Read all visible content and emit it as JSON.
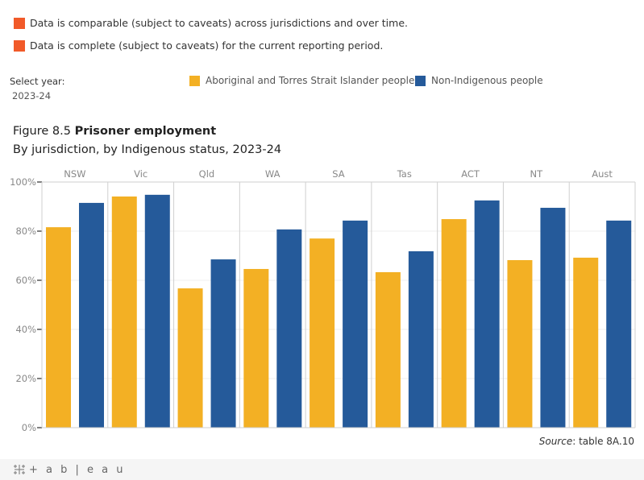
{
  "caveats": [
    {
      "text": "Data is comparable (subject to caveats) across jurisdictions and over time.",
      "color": "#f15a29"
    },
    {
      "text": "Data is complete (subject to caveats) for the current reporting period.",
      "color": "#f15a29"
    }
  ],
  "filter": {
    "label": "Select year:",
    "value": "2023-24"
  },
  "legend": [
    {
      "label": "Aboriginal and Torres Strait Islander people",
      "color": "#f3b024"
    },
    {
      "label": "Non-Indigenous people",
      "color": "#255a9a"
    }
  ],
  "figure": {
    "number": "Figure 8.5",
    "title": "Prisoner employment",
    "subtitle": "By jurisdiction, by Indigenous status, 2023-24"
  },
  "source": {
    "label": "Source",
    "text": ": table 8A.10"
  },
  "footer": {
    "brand": "+ a b | e a u"
  },
  "chart_data": {
    "type": "bar",
    "title": "Prisoner employment",
    "subtitle": "By jurisdiction, by Indigenous status, 2023-24",
    "xlabel": "",
    "ylabel": "",
    "categories": [
      "NSW",
      "Vic",
      "Qld",
      "WA",
      "SA",
      "Tas",
      "ACT",
      "NT",
      "Aust"
    ],
    "series": [
      {
        "name": "Aboriginal and Torres Strait Islander people",
        "color": "#f3b024",
        "values": [
          81.6,
          94.1,
          56.7,
          64.6,
          77.0,
          63.3,
          84.9,
          68.2,
          69.2
        ]
      },
      {
        "name": "Non-Indigenous people",
        "color": "#255a9a",
        "values": [
          91.5,
          94.8,
          68.5,
          80.7,
          84.3,
          71.8,
          92.5,
          89.5,
          84.3
        ]
      }
    ],
    "ylim": [
      0,
      100
    ],
    "yticks": [
      0,
      20,
      40,
      60,
      80,
      100
    ],
    "ytick_labels": [
      "0%",
      "20%",
      "40%",
      "60%",
      "80%",
      "100%"
    ],
    "grid": true,
    "legend_position": "top"
  }
}
